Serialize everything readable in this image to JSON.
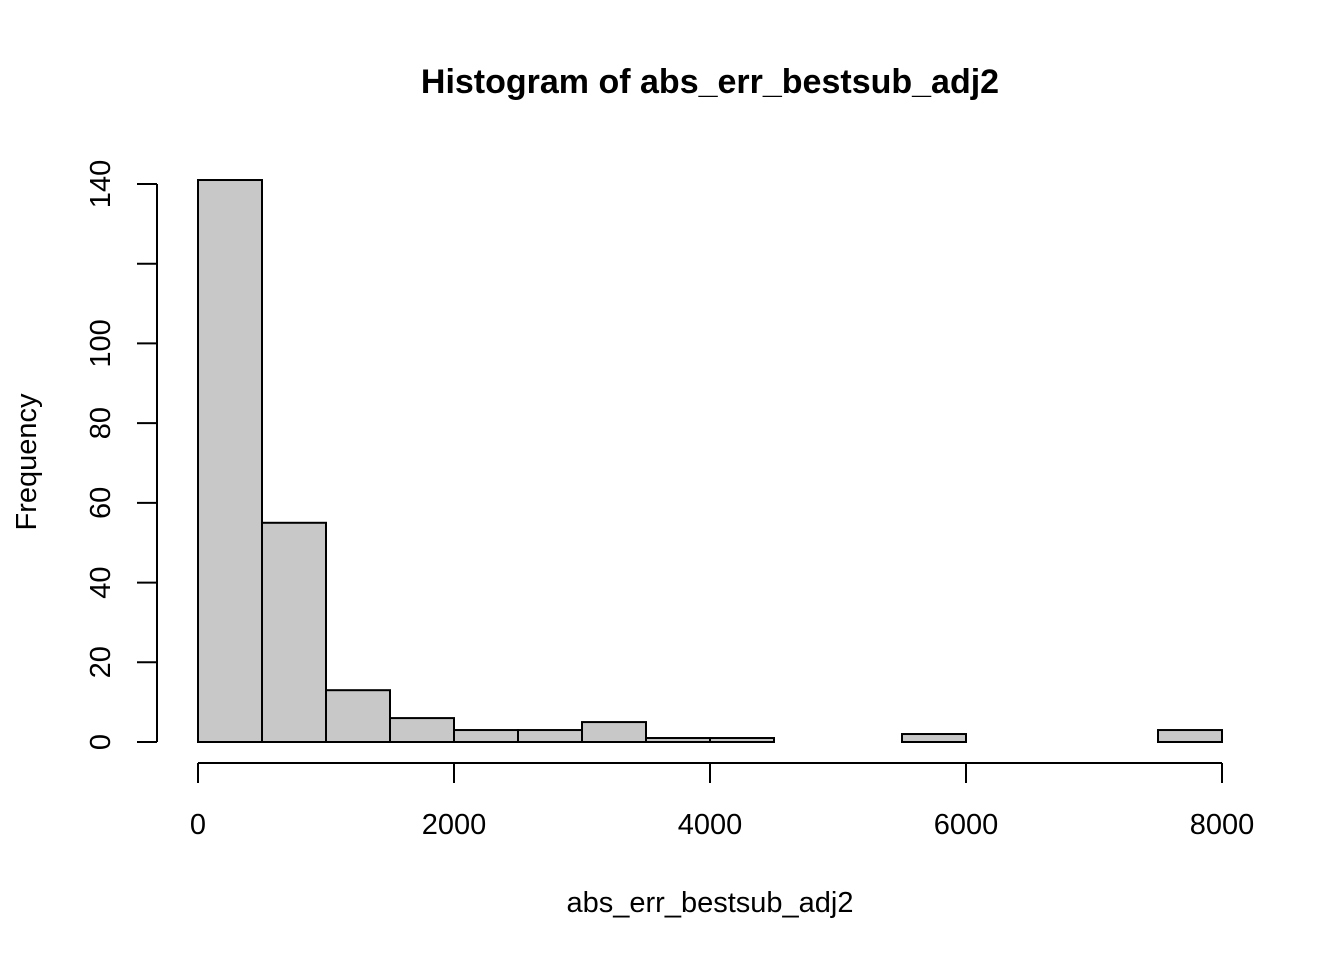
{
  "chart_data": {
    "type": "bar",
    "title": "Histogram of abs_err_bestsub_adj2",
    "xlabel": "abs_err_bestsub_adj2",
    "ylabel": "Frequency",
    "bins": [
      {
        "x0": 0,
        "x1": 500,
        "count": 141
      },
      {
        "x0": 500,
        "x1": 1000,
        "count": 55
      },
      {
        "x0": 1000,
        "x1": 1500,
        "count": 13
      },
      {
        "x0": 1500,
        "x1": 2000,
        "count": 6
      },
      {
        "x0": 2000,
        "x1": 2500,
        "count": 3
      },
      {
        "x0": 2500,
        "x1": 3000,
        "count": 3
      },
      {
        "x0": 3000,
        "x1": 3500,
        "count": 5
      },
      {
        "x0": 3500,
        "x1": 4000,
        "count": 1
      },
      {
        "x0": 4000,
        "x1": 4500,
        "count": 1
      },
      {
        "x0": 4500,
        "x1": 5000,
        "count": 0
      },
      {
        "x0": 5000,
        "x1": 5500,
        "count": 0
      },
      {
        "x0": 5500,
        "x1": 6000,
        "count": 2
      },
      {
        "x0": 6000,
        "x1": 6500,
        "count": 0
      },
      {
        "x0": 6500,
        "x1": 7000,
        "count": 0
      },
      {
        "x0": 7000,
        "x1": 7500,
        "count": 0
      },
      {
        "x0": 7500,
        "x1": 8000,
        "count": 3
      }
    ],
    "xlim": [
      0,
      8000
    ],
    "ylim": [
      0,
      141
    ],
    "x_ticks": [
      0,
      2000,
      4000,
      6000,
      8000
    ],
    "y_ticks": [
      0,
      20,
      40,
      60,
      80,
      100,
      120,
      140
    ],
    "y_tick_labels": [
      "0",
      "20",
      "40",
      "60",
      "80",
      "100",
      "",
      "140"
    ],
    "bar_fill": "#c8c8c8",
    "bar_stroke": "#000000",
    "grid": false,
    "legend": "none"
  }
}
